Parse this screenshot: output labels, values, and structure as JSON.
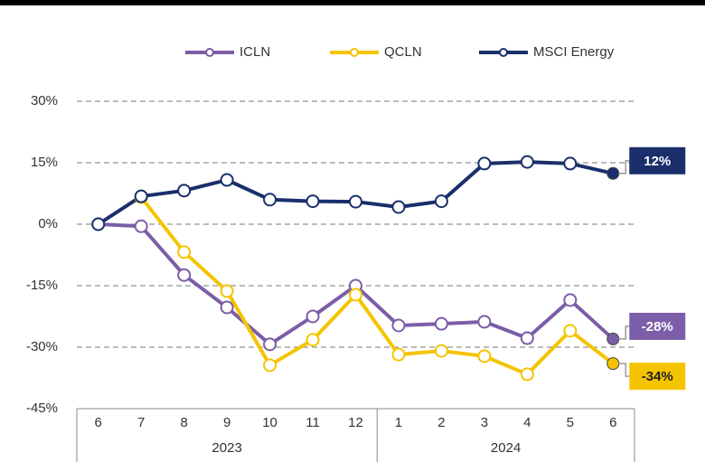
{
  "chart_data": {
    "type": "line",
    "categories": [
      "6",
      "7",
      "8",
      "9",
      "10",
      "11",
      "12",
      "1",
      "2",
      "3",
      "4",
      "5",
      "6"
    ],
    "x_groups": [
      {
        "label": "2023",
        "count": 7
      },
      {
        "label": "2024",
        "count": 6
      }
    ],
    "series": [
      {
        "name": "ICLN",
        "color": "#7b5ea7",
        "values": [
          0,
          -0.5,
          -12.4,
          -20.3,
          -29.3,
          -22.5,
          -15,
          -24.7,
          -24.3,
          -23.8,
          -27.8,
          -18.5,
          -28
        ],
        "value_labels": [
          null,
          null,
          null,
          null,
          null,
          null,
          null,
          null,
          null,
          null,
          null,
          null,
          "-28%"
        ]
      },
      {
        "name": "QCLN",
        "color": "#f5c400",
        "values": [
          null,
          6.6,
          -6.8,
          -16.3,
          -34.4,
          -28.2,
          -17.2,
          -31.8,
          -30.9,
          -32.2,
          -36.6,
          -26,
          -34
        ],
        "value_labels": [
          null,
          null,
          null,
          null,
          null,
          null,
          null,
          null,
          null,
          null,
          null,
          null,
          "-34%"
        ]
      },
      {
        "name": "MSCI Energy",
        "color": "#1a2f6b",
        "values": [
          0,
          6.8,
          8.2,
          10.8,
          6,
          5.6,
          5.5,
          4.2,
          5.6,
          14.8,
          15.2,
          14.8,
          12.4
        ],
        "value_labels": [
          null,
          null,
          null,
          null,
          null,
          null,
          null,
          null,
          null,
          null,
          null,
          null,
          "12%"
        ]
      }
    ],
    "ylim": [
      -45,
      30
    ],
    "yticks": [
      {
        "value": -45,
        "label": "-45%"
      },
      {
        "value": -30,
        "label": "-30%"
      },
      {
        "value": -15,
        "label": "-15%"
      },
      {
        "value": 0,
        "label": "0%"
      },
      {
        "value": 15,
        "label": "15%"
      },
      {
        "value": 30,
        "label": "30%"
      }
    ],
    "grid": true,
    "legend": "top"
  }
}
